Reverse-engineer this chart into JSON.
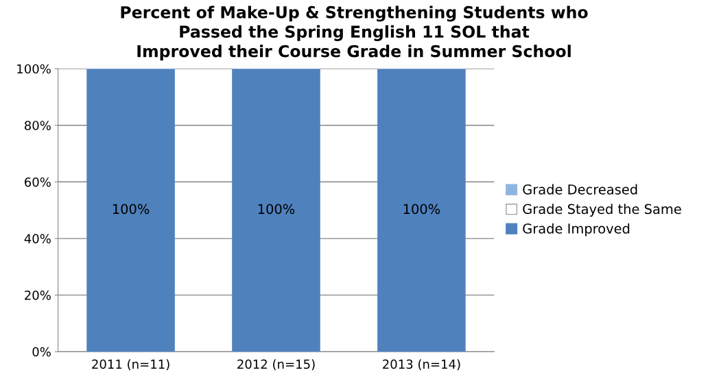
{
  "chart_data": {
    "type": "bar",
    "stacked": true,
    "title": "Percent of Make-Up & Strengthening Students who\nPassed the Spring English 11 SOL that\nImproved their Course Grade in Summer School",
    "categories": [
      "2011 (n=11)",
      "2012 (n=15)",
      "2013 (n=14)"
    ],
    "series": [
      {
        "name": "Grade Improved",
        "color": "#4f81bd",
        "values": [
          100,
          100,
          100
        ],
        "value_labels": [
          "100%",
          "100%",
          "100%"
        ]
      },
      {
        "name": "Grade Stayed the Same",
        "color": "#ffffff",
        "values": [
          0,
          0,
          0
        ]
      },
      {
        "name": "Grade Decreased",
        "color": "#8eb4e3",
        "values": [
          0,
          0,
          0
        ]
      }
    ],
    "ylim": [
      0,
      100
    ],
    "yticks": [
      {
        "value": 0,
        "label": "0%"
      },
      {
        "value": 20,
        "label": "20%"
      },
      {
        "value": 40,
        "label": "40%"
      },
      {
        "value": 60,
        "label": "60%"
      },
      {
        "value": 80,
        "label": "80%"
      },
      {
        "value": 100,
        "label": "100%"
      }
    ],
    "grid": "y",
    "legend": "right"
  }
}
